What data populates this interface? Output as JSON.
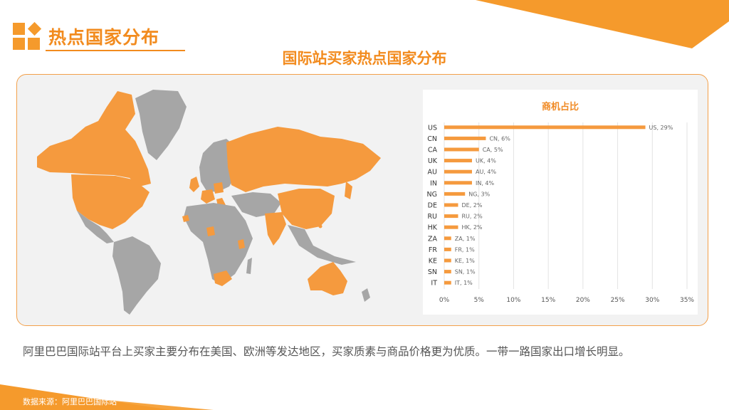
{
  "header": {
    "title": "热点国家分布"
  },
  "main_title": "国际站买家热点国家分布",
  "description": "阿里巴巴国际站平台上买家主要分布在美国、欧洲等发达地区，买家质素与商品价格更为优质。一带一路国家出口增长明显。",
  "source": "数据来源：阿里巴巴国际站",
  "colors": {
    "accent": "#f59a3e",
    "gray": "#a6a6a6",
    "border": "#f3a04a"
  },
  "map": {
    "highlighted_countries": [
      "US",
      "CN",
      "CA",
      "UK",
      "AU",
      "IN",
      "NG",
      "DE",
      "RU",
      "HK",
      "ZA",
      "FR",
      "KE",
      "SN",
      "IT"
    ]
  },
  "chart_data": {
    "type": "bar",
    "orientation": "horizontal",
    "title": "商机占比",
    "categories": [
      "US",
      "CN",
      "CA",
      "UK",
      "AU",
      "IN",
      "NG",
      "DE",
      "RU",
      "HK",
      "ZA",
      "FR",
      "KE",
      "SN",
      "IT"
    ],
    "values": [
      29,
      6,
      5,
      4,
      4,
      4,
      3,
      2,
      2,
      2,
      1,
      1,
      1,
      1,
      1
    ],
    "data_labels": [
      "US, 29%",
      "CN, 6%",
      "CA, 5%",
      "UK, 4%",
      "AU, 4%",
      "IN, 4%",
      "NG, 3%",
      "DE, 2%",
      "RU, 2%",
      "HK, 2%",
      "ZA, 1%",
      "FR, 1%",
      "KE, 1%",
      "SN, 1%",
      "IT, 1%"
    ],
    "xlim": [
      0,
      35
    ],
    "x_ticks": [
      "0%",
      "5%",
      "10%",
      "15%",
      "20%",
      "25%",
      "30%",
      "35%"
    ],
    "grid": true,
    "bar_color": "#f59a3e"
  }
}
